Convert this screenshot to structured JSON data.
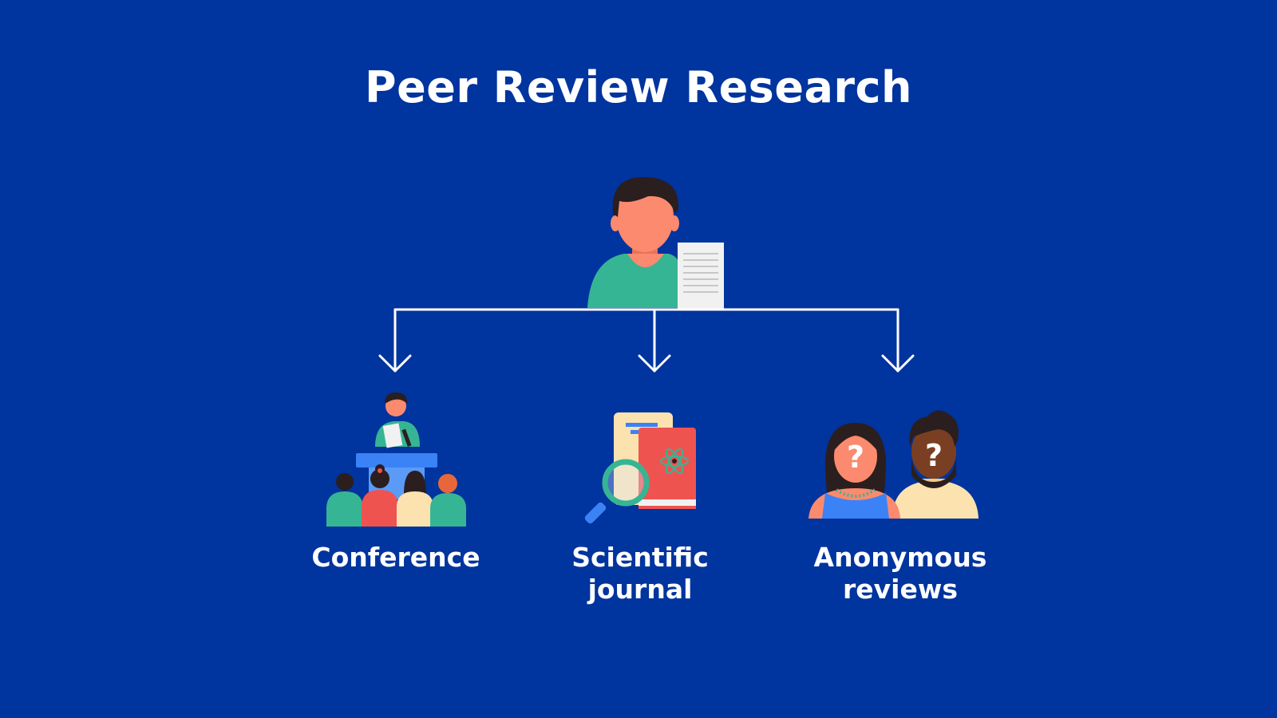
{
  "title": "Peer Review Research",
  "nodes": [
    {
      "id": "conference",
      "label": "Conference",
      "icon": "conference-icon"
    },
    {
      "id": "journal",
      "label": "Scientific\njournal",
      "icon": "scientific-journal-icon"
    },
    {
      "id": "anonymous",
      "label": "Anonymous\nreviews",
      "icon": "anonymous-reviewers-icon"
    }
  ],
  "root_icon": "researcher-with-paper-icon",
  "colors": {
    "background": "#00349e",
    "text": "#ffffff",
    "connector": "#ffffff",
    "skin": "#fb8a6e",
    "teal": "#36b594",
    "hair": "#2b1e1e",
    "coral": "#ef5350",
    "cream": "#fbe2ae"
  }
}
